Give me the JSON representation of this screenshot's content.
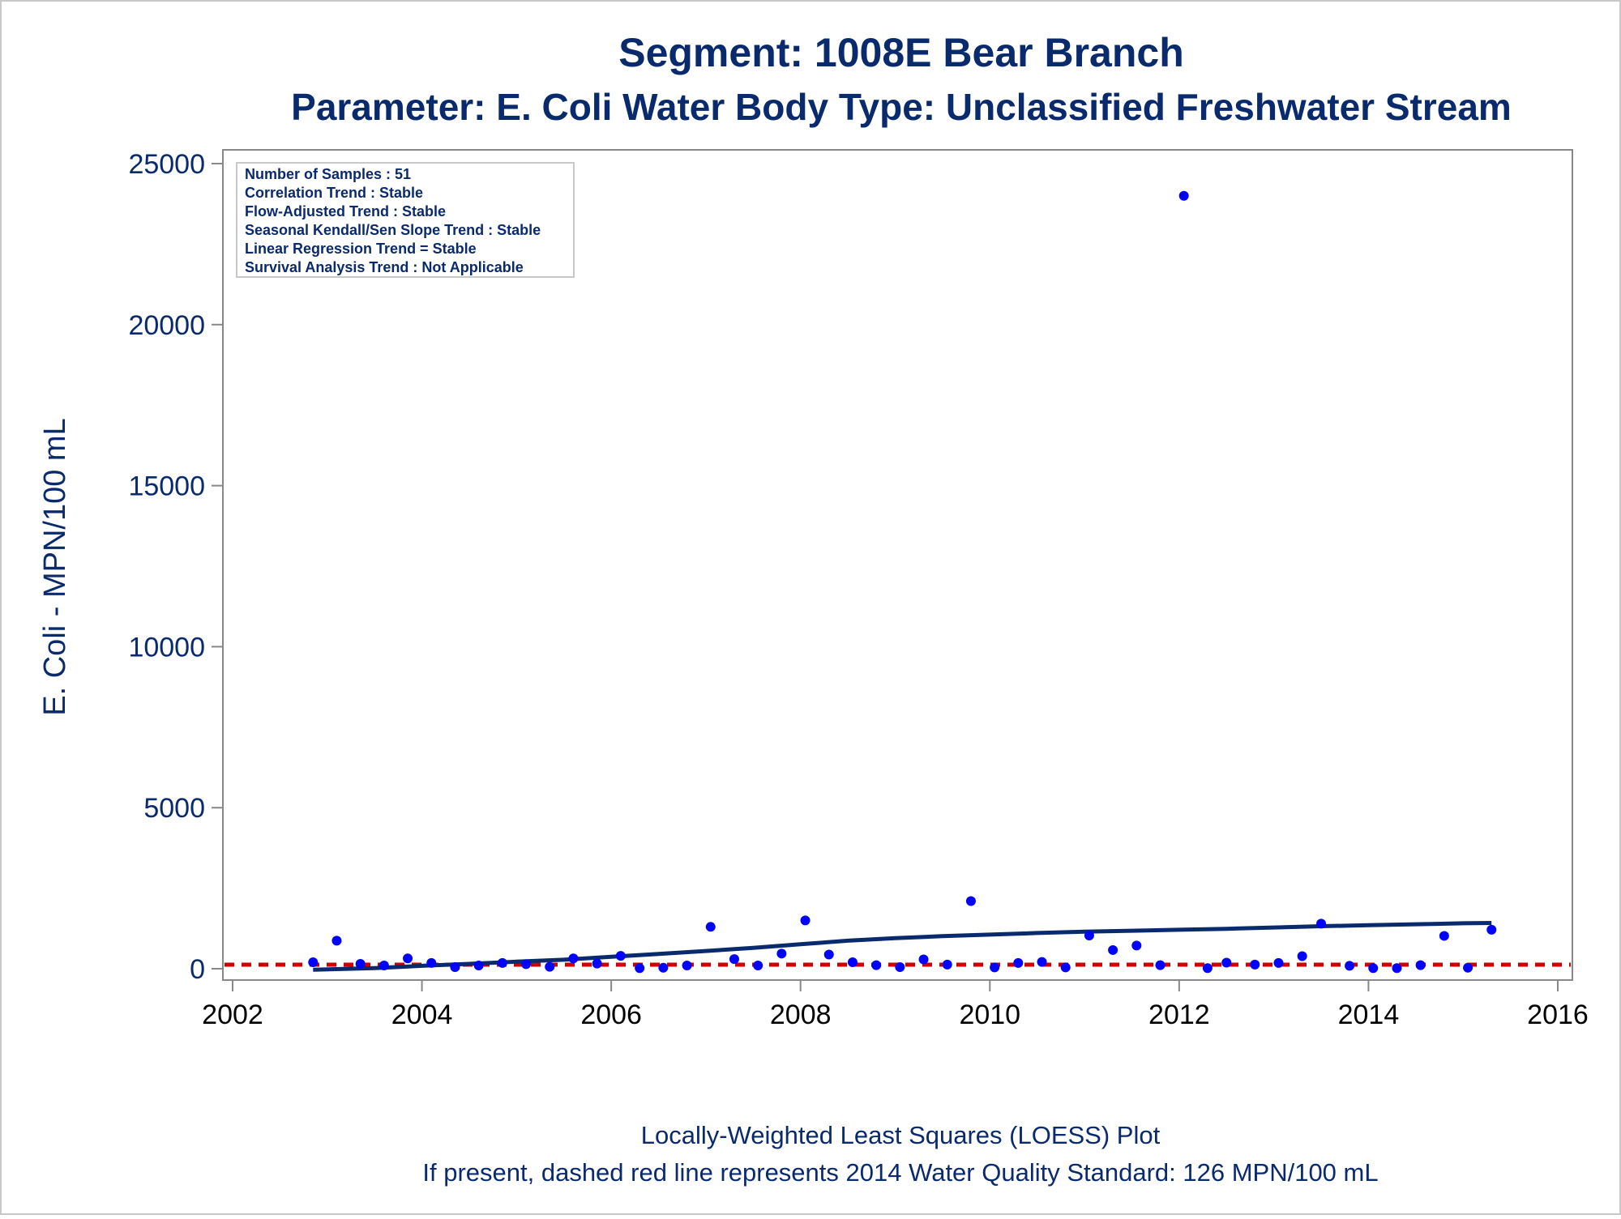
{
  "chart_data": {
    "type": "scatter",
    "title": "Segment: 1008E  Bear Branch",
    "subtitle": "Parameter: E. Coli   Water Body Type: Unclassified Freshwater Stream",
    "xlabel": "",
    "ylabel": "E. Coli - MPN/100 mL",
    "xlim": [
      2002,
      2016
    ],
    "ylim": [
      0,
      25000
    ],
    "x_ticks": [
      "2002",
      "2004",
      "2006",
      "2008",
      "2010",
      "2012",
      "2014",
      "2016"
    ],
    "y_ticks": [
      "0",
      "5000",
      "10000",
      "15000",
      "20000",
      "25000"
    ],
    "grid": false,
    "stats_box": {
      "placement": "top-left",
      "lines": [
        "Number of Samples : 51",
        "Correlation Trend : Stable",
        "Flow-Adjusted Trend : Stable",
        "Seasonal Kendall/Sen Slope Trend : Stable",
        "Linear Regression Trend = Stable",
        "Survival Analysis Trend : Not Applicable"
      ]
    },
    "footnotes": [
      "Locally-Weighted Least Squares (LOESS) Plot",
      "If present, dashed red line represents 2014 Water Quality Standard: 126 MPN/100 mL"
    ],
    "standard_line": {
      "y": 126,
      "color": "#cc0000",
      "style": "dashed"
    },
    "colors": {
      "title": "#0a2a6e",
      "points": "#0000ff",
      "loess": "#0a2a6e",
      "axis": "#888888",
      "tick_label": "#000000"
    },
    "series": [
      {
        "kind": "points",
        "x": [
          2002.85,
          2003.1,
          2003.35,
          2003.6,
          2003.85,
          2004.1,
          2004.35,
          2004.6,
          2004.85,
          2005.1,
          2005.35,
          2005.6,
          2005.85,
          2006.1,
          2006.3,
          2006.55,
          2006.8,
          2007.05,
          2007.3,
          2007.55,
          2007.8,
          2008.05,
          2008.3,
          2008.55,
          2008.8,
          2009.05,
          2009.3,
          2009.55,
          2009.8,
          2010.05,
          2010.3,
          2010.55,
          2010.8,
          2011.05,
          2011.3,
          2011.55,
          2011.8,
          2012.05,
          2012.3,
          2012.5,
          2012.8,
          2013.05,
          2013.3,
          2013.5,
          2013.8,
          2014.05,
          2014.3,
          2014.55,
          2014.8,
          2015.05,
          2015.3
        ],
        "y": [
          200,
          870,
          150,
          100,
          320,
          180,
          50,
          100,
          180,
          140,
          60,
          320,
          160,
          400,
          20,
          30,
          100,
          1300,
          300,
          100,
          470,
          1500,
          440,
          200,
          110,
          50,
          290,
          130,
          2100,
          40,
          180,
          210,
          40,
          1030,
          580,
          720,
          110,
          24000,
          20,
          190,
          130,
          180,
          390,
          1400,
          90,
          20,
          20,
          110,
          1020,
          30,
          1210
        ]
      },
      {
        "kind": "loess",
        "x": [
          2002.85,
          2003.5,
          2004.0,
          2004.5,
          2005.0,
          2005.5,
          2006.0,
          2006.5,
          2007.0,
          2007.5,
          2008.0,
          2008.5,
          2009.0,
          2009.5,
          2010.0,
          2010.5,
          2011.0,
          2011.5,
          2012.0,
          2012.5,
          2013.0,
          2013.5,
          2014.0,
          2014.5,
          2015.0,
          2015.3
        ],
        "y": [
          -30,
          20,
          90,
          150,
          220,
          280,
          370,
          460,
          550,
          650,
          760,
          870,
          950,
          1010,
          1060,
          1110,
          1150,
          1180,
          1210,
          1240,
          1280,
          1320,
          1350,
          1380,
          1410,
          1420
        ]
      }
    ]
  }
}
